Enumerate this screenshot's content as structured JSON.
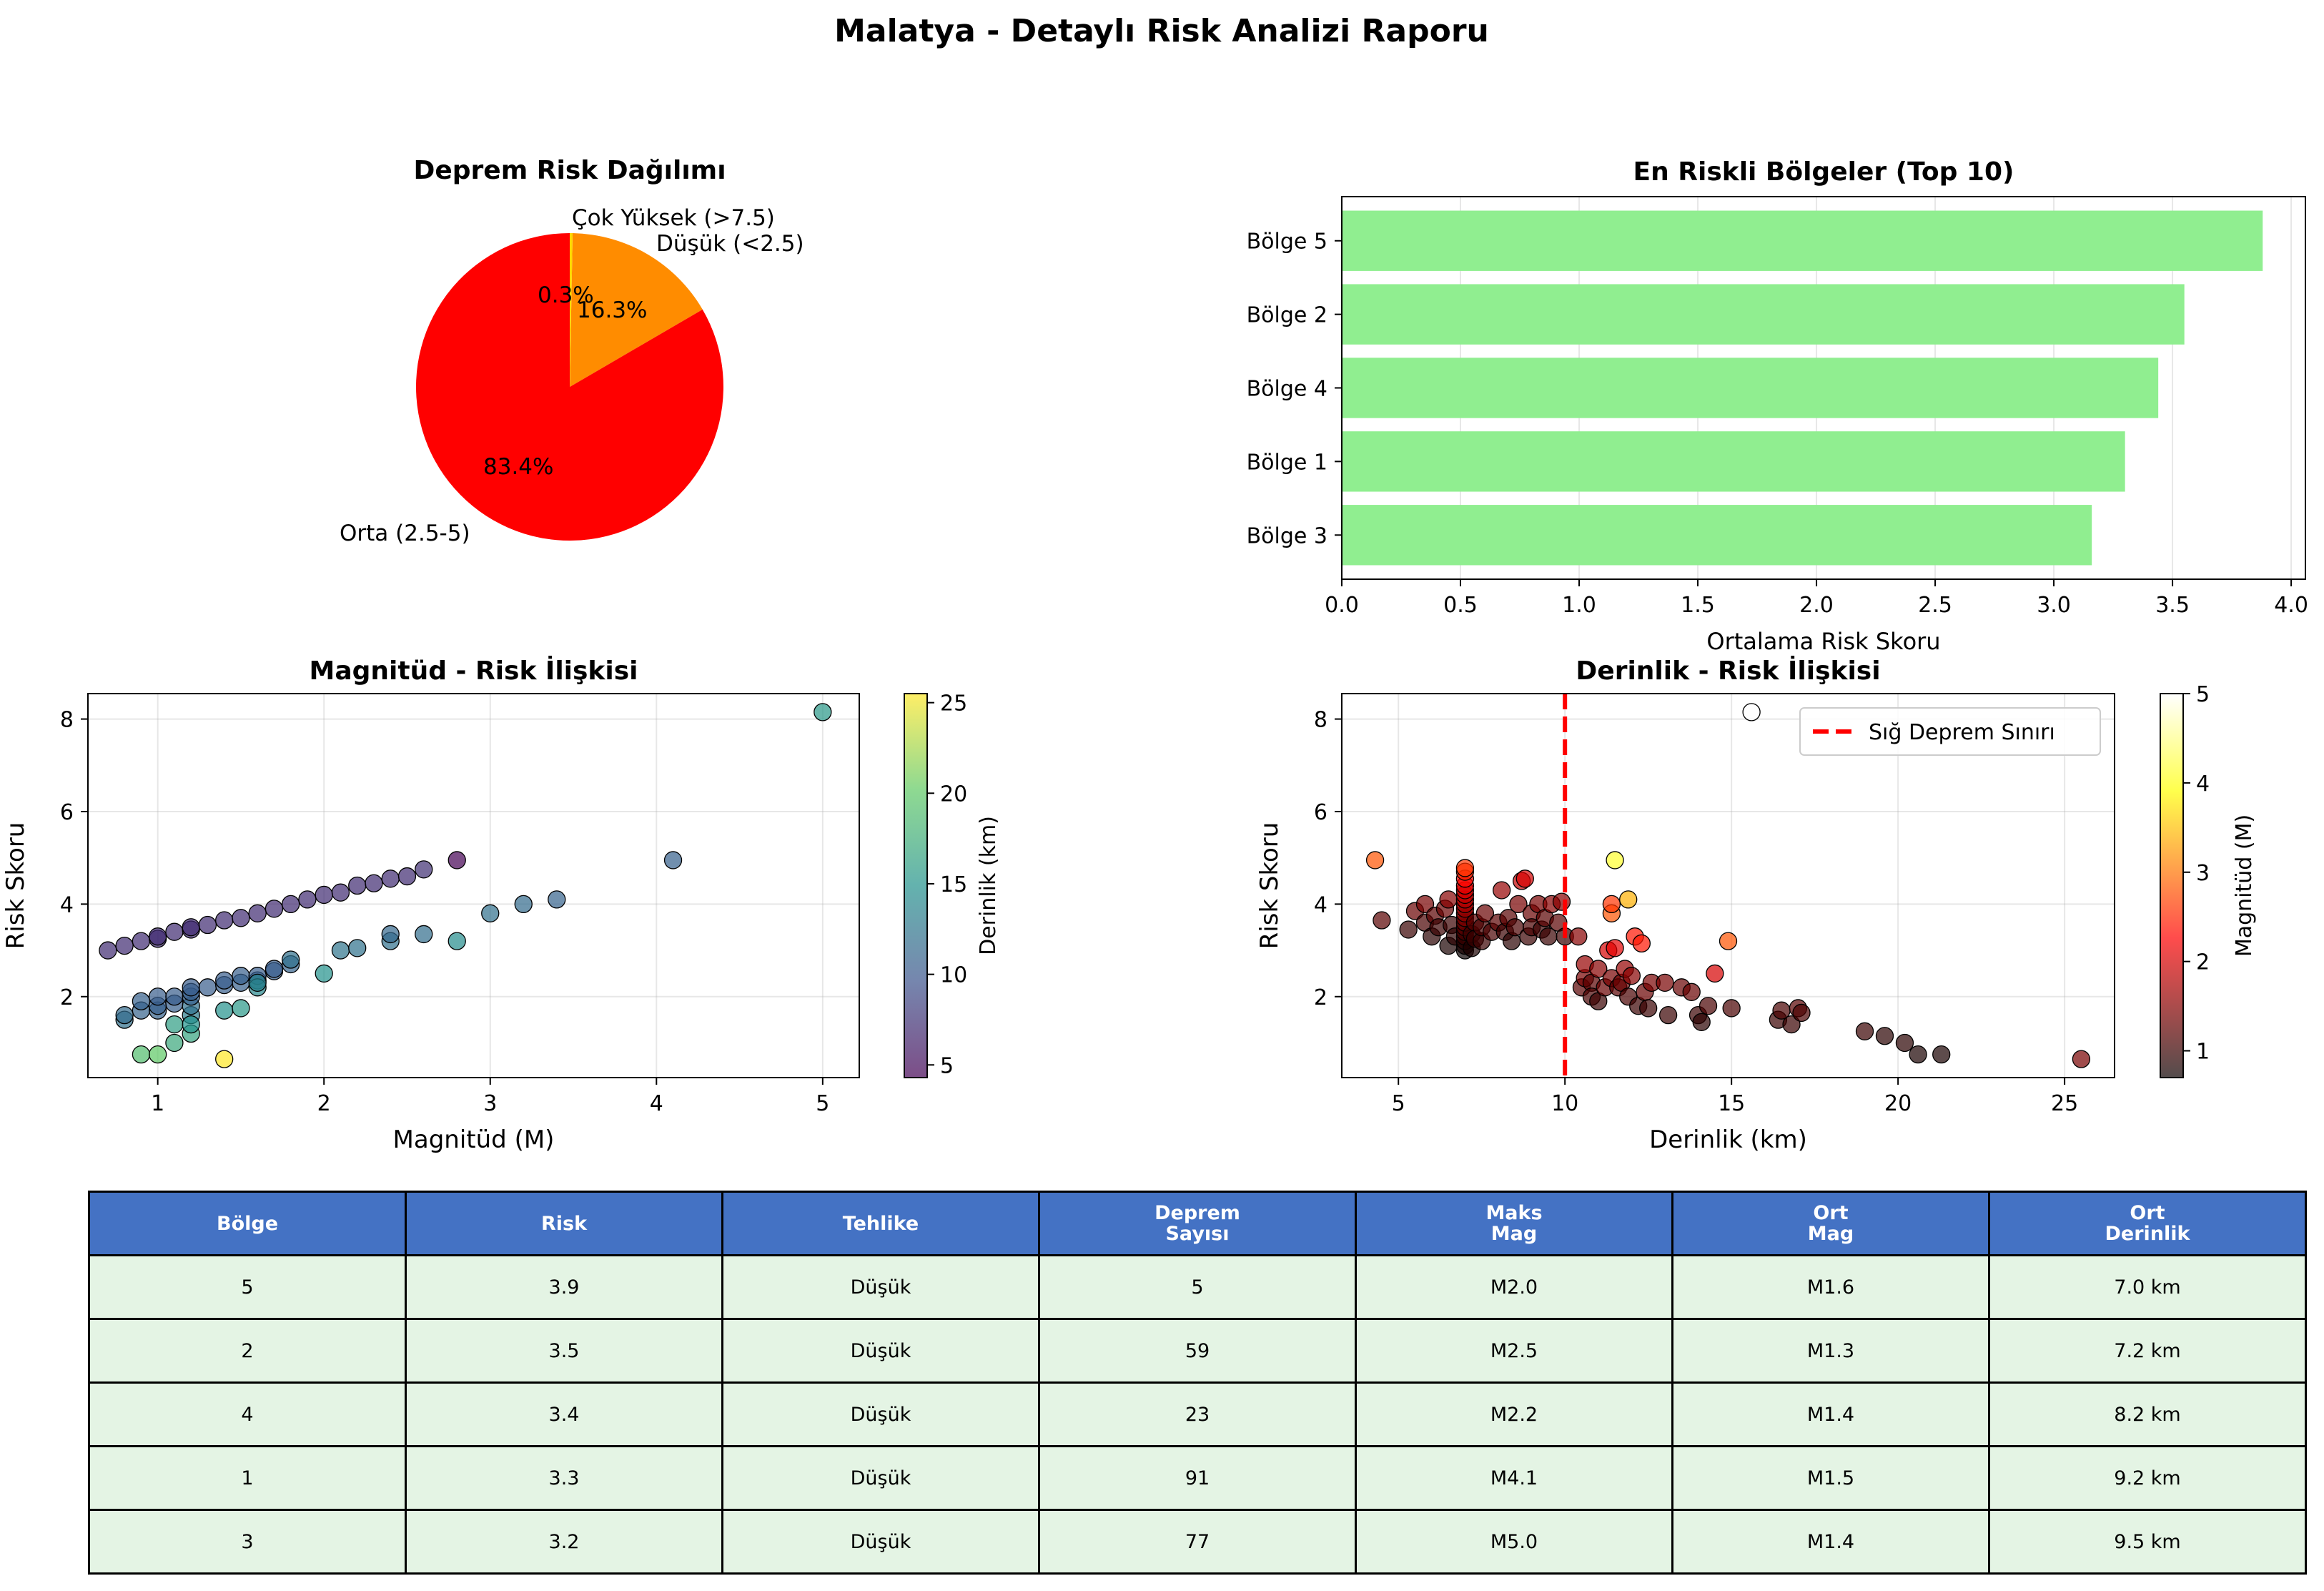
{
  "page": {
    "title": "Malatya - Detaylı Risk Analizi Raporu"
  },
  "colors": {
    "pie": [
      "#ff0000",
      "#ff8c00",
      "#ffd700"
    ],
    "bars": "#90ee90",
    "table_header": "#4472c4",
    "table_cell": "#e4f4e4",
    "threshold_line": "#ff0000"
  },
  "chart_data": [
    {
      "type": "pie",
      "title": "Deprem Risk Dağılımı",
      "slices": [
        {
          "label": "Orta (2.5-5)",
          "value": 83.4,
          "pct_label": "83.4%"
        },
        {
          "label": "Düşük (<2.5)",
          "value": 16.3,
          "pct_label": "16.3%"
        },
        {
          "label": "Çok Yüksek (>7.5)",
          "value": 0.3,
          "pct_label": "0.3%"
        }
      ]
    },
    {
      "type": "bar",
      "orientation": "horizontal",
      "title": "En Riskli Bölgeler (Top 10)",
      "xlabel": "Ortalama Risk Skoru",
      "categories": [
        "Bölge 5",
        "Bölge 2",
        "Bölge 4",
        "Bölge 1",
        "Bölge 3"
      ],
      "values": [
        3.88,
        3.55,
        3.44,
        3.3,
        3.16
      ],
      "xlim": [
        0,
        4.06
      ],
      "xticks": [
        "0.0",
        "0.5",
        "1.0",
        "1.5",
        "2.0",
        "2.5",
        "3.0",
        "3.5",
        "4.0"
      ],
      "grid": true
    },
    {
      "type": "scatter",
      "title": "Magnitüd - Risk İlişkisi",
      "xlabel": "Magnitüd (M)",
      "ylabel": "Risk Skoru",
      "colorbar_label": "Derinlik (km)",
      "colorbar_range": [
        4.3,
        25.5
      ],
      "colorbar_ticks": [
        "5",
        "10",
        "15",
        "20",
        "25"
      ],
      "colormap": "viridis",
      "xlim": [
        0.58,
        5.22
      ],
      "ylim": [
        0.25,
        8.55
      ],
      "xticks": [
        "1",
        "2",
        "3",
        "4",
        "5"
      ],
      "yticks": [
        "2",
        "4",
        "6",
        "8"
      ],
      "grid": true,
      "points": [
        [
          0.7,
          3.0,
          7.0
        ],
        [
          0.8,
          3.1,
          7.0
        ],
        [
          0.9,
          3.2,
          7.0
        ],
        [
          1.0,
          3.25,
          7.0
        ],
        [
          1.0,
          3.3,
          7.0
        ],
        [
          1.1,
          3.4,
          7.0
        ],
        [
          1.2,
          3.45,
          7.0
        ],
        [
          1.2,
          3.5,
          7.0
        ],
        [
          1.3,
          3.55,
          7.0
        ],
        [
          1.4,
          3.65,
          7.0
        ],
        [
          1.5,
          3.7,
          7.0
        ],
        [
          1.6,
          3.8,
          7.0
        ],
        [
          1.7,
          3.9,
          7.0
        ],
        [
          1.8,
          4.0,
          7.0
        ],
        [
          1.9,
          4.1,
          7.0
        ],
        [
          2.0,
          4.2,
          7.0
        ],
        [
          2.1,
          4.25,
          7.0
        ],
        [
          2.2,
          4.4,
          7.0
        ],
        [
          2.3,
          4.45,
          7.0
        ],
        [
          2.4,
          4.55,
          7.0
        ],
        [
          2.5,
          4.6,
          7.0
        ],
        [
          2.6,
          4.75,
          7.2
        ],
        [
          2.8,
          4.95,
          4.3
        ],
        [
          0.8,
          1.5,
          12.0
        ],
        [
          0.8,
          1.6,
          11.5
        ],
        [
          0.9,
          1.7,
          11.0
        ],
        [
          0.9,
          1.9,
          10.8
        ],
        [
          1.0,
          1.7,
          11.0
        ],
        [
          1.0,
          1.8,
          10.6
        ],
        [
          1.0,
          2.0,
          10.4
        ],
        [
          1.1,
          1.85,
          10.6
        ],
        [
          1.1,
          2.0,
          10.5
        ],
        [
          1.2,
          1.6,
          13.0
        ],
        [
          1.2,
          1.8,
          12.0
        ],
        [
          1.2,
          2.0,
          10.8
        ],
        [
          1.2,
          2.1,
          10.6
        ],
        [
          1.2,
          2.2,
          10.5
        ],
        [
          1.3,
          2.2,
          10.4
        ],
        [
          1.4,
          2.25,
          10.6
        ],
        [
          1.4,
          2.35,
          10.5
        ],
        [
          1.5,
          2.3,
          10.8
        ],
        [
          1.5,
          2.45,
          10.6
        ],
        [
          1.6,
          2.35,
          10.7
        ],
        [
          1.6,
          2.45,
          10.5
        ],
        [
          1.7,
          2.55,
          10.6
        ],
        [
          1.7,
          2.6,
          10.4
        ],
        [
          1.8,
          2.7,
          11.0
        ],
        [
          1.8,
          2.8,
          12.0
        ],
        [
          1.1,
          1.4,
          16.0
        ],
        [
          1.2,
          1.2,
          16.5
        ],
        [
          1.2,
          1.4,
          15.0
        ],
        [
          1.4,
          1.7,
          15.0
        ],
        [
          1.5,
          1.75,
          15.5
        ],
        [
          1.6,
          2.2,
          14.0
        ],
        [
          1.6,
          2.3,
          13.5
        ],
        [
          2.0,
          2.5,
          15.0
        ],
        [
          2.1,
          3.0,
          12.5
        ],
        [
          2.2,
          3.05,
          12.2
        ],
        [
          2.4,
          3.2,
          12.0
        ],
        [
          2.4,
          3.35,
          11.3
        ],
        [
          2.6,
          3.35,
          11.8
        ],
        [
          2.8,
          3.2,
          14.5
        ],
        [
          3.0,
          3.8,
          12.0
        ],
        [
          3.2,
          4.0,
          11.5
        ],
        [
          3.4,
          4.1,
          11.0
        ],
        [
          4.1,
          4.95,
          10.8
        ],
        [
          5.0,
          8.15,
          15.5
        ],
        [
          0.9,
          0.75,
          19.0
        ],
        [
          1.0,
          0.75,
          20.0
        ],
        [
          1.1,
          1.0,
          17.0
        ],
        [
          1.4,
          0.65,
          25.5
        ]
      ]
    },
    {
      "type": "scatter",
      "title": "Derinlik - Risk İlişkisi",
      "xlabel": "Derinlik (km)",
      "ylabel": "Risk Skoru",
      "colorbar_label": "Magnitüd (M)",
      "colorbar_range": [
        0.7,
        5.0
      ],
      "colorbar_ticks": [
        "1",
        "2",
        "3",
        "4",
        "5"
      ],
      "colormap": "hot",
      "legend": "Sığ Deprem Sınırı",
      "legend_position": "upper right",
      "threshold_x": 10,
      "xlim": [
        3.3,
        26.5
      ],
      "ylim": [
        0.25,
        8.55
      ],
      "xticks": [
        "5",
        "10",
        "15",
        "20",
        "25"
      ],
      "yticks": [
        "2",
        "4",
        "6",
        "8"
      ],
      "grid": true,
      "points": [
        [
          4.3,
          4.95,
          2.8
        ],
        [
          4.5,
          3.65,
          1.2
        ],
        [
          5.3,
          3.45,
          1.0
        ],
        [
          5.5,
          3.85,
          1.3
        ],
        [
          5.8,
          3.6,
          1.1
        ],
        [
          5.8,
          4.0,
          1.4
        ],
        [
          6.0,
          3.3,
          0.9
        ],
        [
          6.1,
          3.75,
          1.2
        ],
        [
          6.2,
          3.5,
          1.0
        ],
        [
          6.4,
          3.9,
          1.3
        ],
        [
          6.5,
          3.1,
          0.8
        ],
        [
          6.5,
          4.1,
          1.5
        ],
        [
          6.6,
          3.55,
          1.0
        ],
        [
          6.7,
          3.3,
          0.9
        ],
        [
          7.0,
          3.0,
          0.7
        ],
        [
          7.0,
          3.1,
          0.8
        ],
        [
          7.0,
          3.2,
          0.9
        ],
        [
          7.0,
          3.3,
          1.0
        ],
        [
          7.0,
          3.4,
          1.1
        ],
        [
          7.0,
          3.5,
          1.2
        ],
        [
          7.0,
          3.6,
          1.3
        ],
        [
          7.0,
          3.7,
          1.4
        ],
        [
          7.0,
          3.8,
          1.5
        ],
        [
          7.0,
          3.9,
          1.6
        ],
        [
          7.0,
          4.0,
          1.7
        ],
        [
          7.0,
          4.1,
          1.8
        ],
        [
          7.0,
          4.2,
          1.9
        ],
        [
          7.0,
          4.3,
          2.0
        ],
        [
          7.0,
          4.4,
          2.1
        ],
        [
          7.0,
          4.55,
          2.3
        ],
        [
          7.0,
          4.7,
          2.5
        ],
        [
          7.0,
          4.78,
          2.6
        ],
        [
          7.2,
          3.05,
          0.8
        ],
        [
          7.2,
          3.35,
          1.0
        ],
        [
          7.3,
          3.6,
          1.2
        ],
        [
          7.3,
          3.25,
          1.0
        ],
        [
          7.5,
          3.2,
          1.0
        ],
        [
          7.5,
          3.5,
          1.1
        ],
        [
          7.6,
          3.8,
          1.3
        ],
        [
          7.8,
          3.4,
          1.1
        ],
        [
          8.0,
          3.6,
          1.2
        ],
        [
          8.1,
          4.3,
          1.6
        ],
        [
          8.2,
          3.4,
          1.0
        ],
        [
          8.3,
          3.7,
          1.2
        ],
        [
          8.4,
          3.2,
          0.9
        ],
        [
          8.5,
          3.5,
          1.1
        ],
        [
          8.6,
          4.0,
          1.4
        ],
        [
          8.7,
          4.5,
          1.9
        ],
        [
          8.8,
          4.55,
          2.0
        ],
        [
          8.9,
          3.3,
          1.0
        ],
        [
          9.0,
          3.8,
          1.3
        ],
        [
          9.0,
          3.5,
          1.1
        ],
        [
          9.2,
          4.0,
          1.4
        ],
        [
          9.3,
          3.45,
          1.0
        ],
        [
          9.4,
          3.7,
          1.2
        ],
        [
          9.5,
          3.3,
          1.0
        ],
        [
          9.6,
          4.0,
          1.5
        ],
        [
          9.8,
          3.6,
          1.2
        ],
        [
          9.9,
          4.05,
          1.5
        ],
        [
          10.0,
          3.3,
          1.0
        ],
        [
          10.4,
          3.3,
          1.5
        ],
        [
          10.5,
          2.2,
          1.2
        ],
        [
          10.6,
          2.4,
          1.4
        ],
        [
          10.6,
          2.7,
          1.6
        ],
        [
          10.8,
          2.3,
          1.2
        ],
        [
          10.8,
          2.0,
          1.1
        ],
        [
          11.0,
          2.6,
          1.5
        ],
        [
          11.0,
          1.9,
          1.0
        ],
        [
          11.2,
          2.2,
          1.3
        ],
        [
          11.3,
          3.0,
          2.0
        ],
        [
          11.4,
          2.4,
          1.4
        ],
        [
          11.4,
          3.8,
          2.8
        ],
        [
          11.4,
          4.0,
          2.6
        ],
        [
          11.5,
          4.95,
          4.1
        ],
        [
          11.5,
          3.05,
          2.1
        ],
        [
          11.6,
          2.2,
          1.2
        ],
        [
          11.7,
          2.3,
          1.3
        ],
        [
          11.8,
          2.6,
          1.6
        ],
        [
          11.9,
          4.1,
          3.4
        ],
        [
          11.9,
          2.0,
          1.1
        ],
        [
          12.0,
          2.45,
          1.5
        ],
        [
          12.1,
          3.3,
          2.4
        ],
        [
          12.2,
          1.8,
          1.0
        ],
        [
          12.3,
          3.15,
          2.4
        ],
        [
          12.4,
          2.1,
          1.3
        ],
        [
          12.5,
          1.75,
          1.0
        ],
        [
          12.6,
          2.3,
          1.4
        ],
        [
          13.0,
          2.3,
          1.4
        ],
        [
          13.1,
          1.6,
          1.0
        ],
        [
          13.5,
          2.2,
          1.3
        ],
        [
          13.8,
          2.1,
          1.3
        ],
        [
          14.0,
          1.6,
          1.0
        ],
        [
          14.1,
          1.45,
          0.9
        ],
        [
          14.3,
          1.8,
          1.1
        ],
        [
          14.5,
          2.5,
          2.0
        ],
        [
          14.9,
          3.2,
          2.8
        ],
        [
          15.0,
          1.75,
          1.1
        ],
        [
          15.6,
          8.15,
          5.0
        ],
        [
          16.4,
          1.5,
          1.0
        ],
        [
          16.5,
          1.7,
          1.1
        ],
        [
          16.8,
          1.4,
          1.0
        ],
        [
          17.0,
          1.75,
          1.2
        ],
        [
          17.1,
          1.65,
          1.1
        ],
        [
          19.0,
          1.25,
          1.0
        ],
        [
          19.6,
          1.15,
          0.9
        ],
        [
          20.2,
          1.0,
          0.9
        ],
        [
          20.6,
          0.75,
          0.8
        ],
        [
          21.3,
          0.75,
          0.8
        ],
        [
          25.5,
          0.65,
          1.4
        ]
      ]
    }
  ],
  "table": {
    "headers": [
      "Bölge",
      "Risk",
      "Tehlike",
      "Deprem\nSayısı",
      "Maks\nMag",
      "Ort\nMag",
      "Ort\nDerinlik"
    ],
    "rows": [
      [
        "5",
        "3.9",
        "Düşük",
        "5",
        "M2.0",
        "M1.6",
        "7.0 km"
      ],
      [
        "2",
        "3.5",
        "Düşük",
        "59",
        "M2.5",
        "M1.3",
        "7.2 km"
      ],
      [
        "4",
        "3.4",
        "Düşük",
        "23",
        "M2.2",
        "M1.4",
        "8.2 km"
      ],
      [
        "1",
        "3.3",
        "Düşük",
        "91",
        "M4.1",
        "M1.5",
        "9.2 km"
      ],
      [
        "3",
        "3.2",
        "Düşük",
        "77",
        "M5.0",
        "M1.4",
        "9.5 km"
      ]
    ]
  }
}
